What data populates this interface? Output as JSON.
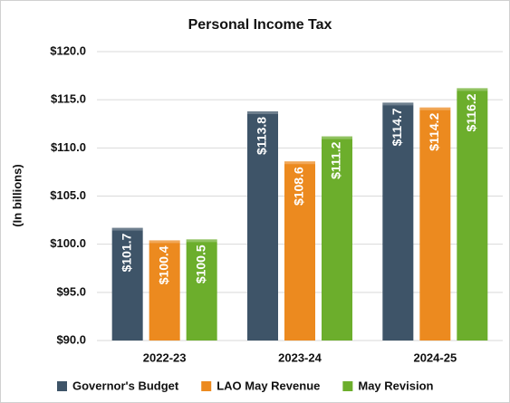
{
  "chart_data": {
    "type": "bar",
    "title": "Personal Income Tax",
    "y_label": "(In billions)",
    "categories": [
      "2022-23",
      "2023-24",
      "2024-25"
    ],
    "series": [
      {
        "name": "Governor's Budget",
        "color": "#3e5468",
        "values": [
          101.7,
          113.8,
          114.7
        ],
        "value_labels": [
          "$101.7",
          "$113.8",
          "$114.7"
        ]
      },
      {
        "name": "LAO May Revenue",
        "color": "#ec8a1f",
        "values": [
          100.4,
          108.6,
          114.2
        ],
        "value_labels": [
          "$100.4",
          "$108.6",
          "$114.2"
        ]
      },
      {
        "name": "May Revision",
        "color": "#6cae2c",
        "values": [
          100.5,
          111.2,
          116.2
        ],
        "value_labels": [
          "$100.5",
          "$111.2",
          "$116.2"
        ]
      }
    ],
    "ylim": [
      90,
      120
    ],
    "yticks": [
      {
        "value": 90,
        "label": "$90.0"
      },
      {
        "value": 95,
        "label": "$95.0"
      },
      {
        "value": 100,
        "label": "$100.0"
      },
      {
        "value": 105,
        "label": "$105.0"
      },
      {
        "value": 110,
        "label": "$110.0"
      },
      {
        "value": 115,
        "label": "$115.0"
      },
      {
        "value": 120,
        "label": "$120.0"
      }
    ],
    "grid": true,
    "legend": "bottom"
  }
}
